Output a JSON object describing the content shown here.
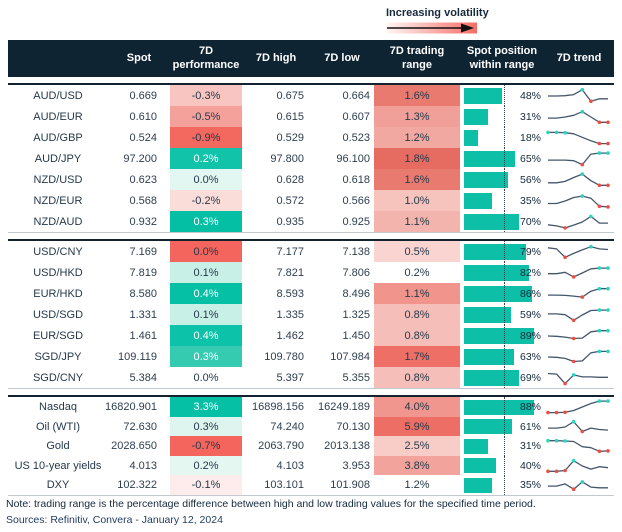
{
  "legend": {
    "label": "Increasing volatility",
    "gradient_color": "#f4655d"
  },
  "header": {
    "columns": [
      "",
      "Spot",
      "7D performance",
      "7D high",
      "7D low",
      "7D trading range",
      "Spot position within range",
      "7D trend"
    ]
  },
  "colors": {
    "header_bg": "#0e2433",
    "bar_teal": "#0cbfa6",
    "strong_teal": "#0ac0a6",
    "strong_red": "#f4655d",
    "spark_line": "#44566b",
    "spark_high": "#2bd4bf",
    "spark_low": "#e94f44"
  },
  "chart_data": {
    "type": "table",
    "columns": [
      "name",
      "spot",
      "7d_performance",
      "7d_high",
      "7d_low",
      "7d_trading_range",
      "spot_position_within_range_pct",
      "7d_trend_sparkline"
    ],
    "blocks": [
      {
        "rows": [
          {
            "name": "AUD/USD",
            "spot": "0.669",
            "perf": "-0.3%",
            "perf_bg": "#f8c5c1",
            "perf_fg": "dark",
            "high": "0.675",
            "low": "0.664",
            "range": "1.6%",
            "range_bg": "#e97a70",
            "pos": 48,
            "spark": {
              "y": [
                0.5,
                0.5,
                0.52,
                0.6,
                0.95,
                0.12,
                0.3,
                0.3
              ],
              "high": [
                4
              ],
              "low": [
                5
              ]
            }
          },
          {
            "name": "AUD/EUR",
            "spot": "0.610",
            "perf": "-0.5%",
            "perf_bg": "#f4a19b",
            "perf_fg": "dark",
            "high": "0.615",
            "low": "0.607",
            "range": "1.3%",
            "range_bg": "#f0a099",
            "pos": 31,
            "spark": {
              "y": [
                0.42,
                0.42,
                0.5,
                0.62,
                0.88,
                0.5,
                0.12,
                0.12
              ],
              "high": [
                4
              ],
              "low": [
                6,
                7
              ]
            }
          },
          {
            "name": "AUD/GBP",
            "spot": "0.524",
            "perf": "-0.9%",
            "perf_bg": "#f3685f",
            "perf_fg": "dark",
            "high": "0.529",
            "low": "0.523",
            "range": "1.2%",
            "range_bg": "#f1a8a0",
            "pos": 18,
            "spark": {
              "y": [
                0.9,
                0.9,
                0.88,
                0.8,
                0.55,
                0.3,
                0.1,
                0.1
              ],
              "high": [
                0,
                1,
                2
              ],
              "low": [
                6,
                7
              ]
            }
          },
          {
            "name": "AUD/JPY",
            "spot": "97.200",
            "perf": "0.2%",
            "perf_bg": "#10c3a9",
            "perf_fg": "white",
            "high": "97.800",
            "low": "96.100",
            "range": "1.8%",
            "range_bg": "#e66c62",
            "pos": 65,
            "spark": {
              "y": [
                0.42,
                0.42,
                0.42,
                0.38,
                0.1,
                0.85,
                0.92,
                0.92
              ],
              "high": [
                6,
                7
              ],
              "low": [
                4
              ]
            }
          },
          {
            "name": "NZD/USD",
            "spot": "0.623",
            "perf": "0.0%",
            "perf_bg": "#e2f7f1",
            "perf_fg": "dark",
            "high": "0.628",
            "low": "0.618",
            "range": "1.6%",
            "range_bg": "#e97a70",
            "pos": 56,
            "spark": {
              "y": [
                0.3,
                0.3,
                0.4,
                0.68,
                0.92,
                0.45,
                0.12,
                0.12
              ],
              "high": [
                4
              ],
              "low": [
                6,
                7
              ]
            }
          },
          {
            "name": "NZD/EUR",
            "spot": "0.568",
            "perf": "-0.2%",
            "perf_bg": "#fadcd9",
            "perf_fg": "dark",
            "high": "0.572",
            "low": "0.566",
            "range": "1.0%",
            "range_bg": "#f6c3bd",
            "pos": 35,
            "spark": {
              "y": [
                0.32,
                0.32,
                0.5,
                0.75,
                0.85,
                0.7,
                0.12,
                0.08
              ],
              "high": [
                4
              ],
              "low": [
                6,
                7
              ]
            }
          },
          {
            "name": "NZD/AUD",
            "spot": "0.932",
            "perf": "0.3%",
            "perf_bg": "#04bfa4",
            "perf_fg": "white",
            "high": "0.935",
            "low": "0.925",
            "range": "1.1%",
            "range_bg": "#f3b4ad",
            "pos": 70,
            "spark": {
              "y": [
                0.3,
                0.22,
                0.08,
                0.28,
                0.5,
                0.9,
                0.42,
                0.42
              ],
              "high": [
                5
              ],
              "low": [
                2
              ]
            }
          }
        ]
      },
      {
        "rows": [
          {
            "name": "USD/CNY",
            "spot": "7.169",
            "perf": "0.0%",
            "perf_bg": "#f4655d",
            "perf_fg": "dark",
            "high": "7.177",
            "low": "7.138",
            "range": "0.5%",
            "range_bg": "#f9d4d0",
            "pos": 79,
            "spark": {
              "y": [
                0.8,
                0.72,
                0.12,
                0.4,
                0.65,
                0.88,
                0.72,
                0.68
              ],
              "high": [
                5
              ],
              "low": [
                2
              ]
            }
          },
          {
            "name": "USD/HKD",
            "spot": "7.819",
            "perf": "0.1%",
            "perf_bg": "#c8f0e6",
            "perf_fg": "dark",
            "high": "7.821",
            "low": "7.806",
            "range": "0.2%",
            "range_bg": "#ffffff",
            "pos": 82,
            "spark": {
              "y": [
                0.45,
                0.45,
                0.55,
                0.22,
                0.5,
                0.8,
                0.85,
                0.85
              ],
              "high": [
                6,
                7
              ],
              "low": [
                3
              ]
            }
          },
          {
            "name": "EUR/HKD",
            "spot": "8.580",
            "perf": "0.4%",
            "perf_bg": "#06c0a5",
            "perf_fg": "white",
            "high": "8.593",
            "low": "8.496",
            "range": "1.1%",
            "range_bg": "#f0948c",
            "pos": 86,
            "spark": {
              "y": [
                0.42,
                0.42,
                0.4,
                0.35,
                0.28,
                0.7,
                0.88,
                0.88
              ],
              "high": [
                6,
                7
              ],
              "low": [
                4
              ]
            }
          },
          {
            "name": "USD/SGD",
            "spot": "1.331",
            "perf": "0.1%",
            "perf_bg": "#c8f0e6",
            "perf_fg": "dark",
            "high": "1.335",
            "low": "1.325",
            "range": "0.8%",
            "range_bg": "#f6beb8",
            "pos": 59,
            "spark": {
              "y": [
                0.58,
                0.58,
                0.52,
                0.12,
                0.5,
                0.82,
                0.85,
                0.85
              ],
              "high": [
                6,
                7
              ],
              "low": [
                3
              ]
            }
          },
          {
            "name": "EUR/SGD",
            "spot": "1.461",
            "perf": "0.4%",
            "perf_bg": "#0cc2a8",
            "perf_fg": "white",
            "high": "1.462",
            "low": "1.450",
            "range": "0.8%",
            "range_bg": "#f6beb8",
            "pos": 89,
            "spark": {
              "y": [
                0.5,
                0.48,
                0.42,
                0.32,
                0.35,
                0.8,
                0.88,
                0.88
              ],
              "high": [
                6,
                7
              ],
              "low": [
                3
              ]
            }
          },
          {
            "name": "SGD/JPY",
            "spot": "109.119",
            "perf": "0.3%",
            "perf_bg": "#35cbb0",
            "perf_fg": "white",
            "high": "109.780",
            "low": "107.984",
            "range": "1.7%",
            "range_bg": "#ee6f66",
            "pos": 63,
            "spark": {
              "y": [
                0.5,
                0.48,
                0.4,
                0.18,
                0.22,
                0.8,
                0.9,
                0.9
              ],
              "high": [
                6,
                7
              ],
              "low": [
                3
              ]
            }
          },
          {
            "name": "SGD/CNY",
            "spot": "5.384",
            "perf": "0.0%",
            "perf_bg": "#ffffff",
            "perf_fg": "dark",
            "high": "5.397",
            "low": "5.355",
            "range": "0.8%",
            "range_bg": "#f6beb8",
            "pos": 69,
            "spark": {
              "y": [
                0.82,
                0.78,
                0.1,
                0.72,
                0.58,
                0.58,
                0.55,
                0.55
              ],
              "high": [
                3
              ],
              "low": [
                2
              ]
            }
          }
        ]
      },
      {
        "rows": [
          {
            "name": "Nasdaq",
            "spot": "16820.901",
            "perf": "3.3%",
            "perf_bg": "#06c0a5",
            "perf_fg": "white",
            "high": "16898.156",
            "low": "16249.189",
            "range": "4.0%",
            "range_bg": "#f0968e",
            "pos": 88,
            "spark": {
              "y": [
                0.1,
                0.1,
                0.12,
                0.25,
                0.5,
                0.75,
                0.92,
                0.92
              ],
              "high": [
                6,
                7
              ],
              "low": [
                0,
                1,
                2
              ]
            }
          },
          {
            "name": "Oil (WTI)",
            "spot": "72.630",
            "perf": "0.3%",
            "perf_bg": "#ddf5ee",
            "perf_fg": "dark",
            "high": "74.240",
            "low": "70.130",
            "range": "5.9%",
            "range_bg": "#ec6e64",
            "pos": 61,
            "spark": {
              "y": [
                0.42,
                0.42,
                0.5,
                0.88,
                0.18,
                0.42,
                0.32,
                0.28
              ],
              "high": [
                3
              ],
              "low": [
                4
              ]
            }
          },
          {
            "name": "Gold",
            "spot": "2028.650",
            "perf": "-0.7%",
            "perf_bg": "#f4655d",
            "perf_fg": "dark",
            "high": "2063.790",
            "low": "2013.138",
            "range": "2.5%",
            "range_bg": "#f8cdc8",
            "pos": 31,
            "spark": {
              "y": [
                0.88,
                0.88,
                0.86,
                0.82,
                0.45,
                0.38,
                0.12,
                0.15
              ],
              "high": [
                0,
                1,
                2
              ],
              "low": [
                6,
                7
              ]
            }
          },
          {
            "name": "US 10-year yields",
            "spot": "4.013",
            "perf": "0.2%",
            "perf_bg": "#e4f7f1",
            "perf_fg": "dark",
            "high": "4.103",
            "low": "3.953",
            "range": "3.8%",
            "range_bg": "#f2a39b",
            "pos": 40,
            "spark": {
              "y": [
                0.12,
                0.12,
                0.18,
                0.88,
                0.5,
                0.28,
                0.45,
                0.38
              ],
              "high": [
                3
              ],
              "low": [
                0,
                1,
                2
              ]
            }
          },
          {
            "name": "DXY",
            "spot": "102.322",
            "perf": "-0.1%",
            "perf_bg": "#fdeceb",
            "perf_fg": "dark",
            "high": "103.101",
            "low": "101.908",
            "range": "1.2%",
            "range_bg": "#ffffff",
            "pos": 35,
            "spark": {
              "y": [
                0.42,
                0.42,
                0.58,
                0.2,
                0.72,
                0.35,
                0.3,
                0.3
              ],
              "high": [
                4
              ],
              "low": [
                3
              ]
            }
          }
        ]
      }
    ]
  },
  "footer": {
    "note": "Note: trading range is the percentage difference between high and low trading values for the specified time period.",
    "sources": "Sources: Refinitiv, Convera - January 12, 2024"
  }
}
